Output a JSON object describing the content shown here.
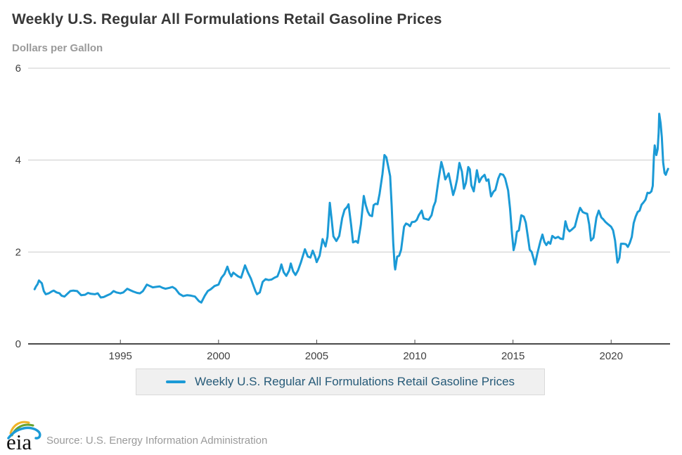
{
  "header": {
    "title": "Weekly U.S. Regular All Formulations Retail Gasoline Prices",
    "subtitle": "Dollars per Gallon"
  },
  "legend": {
    "label": "Weekly U.S. Regular All Formulations Retail Gasoline Prices"
  },
  "footer": {
    "logo_text": "eia",
    "source": "Source: U.S. Energy Information Administration"
  },
  "colors": {
    "line": "#1b9ad6",
    "grid": "#cccccc",
    "axis": "#4a4a4a",
    "tick_text": "#404040",
    "title_text": "#383838",
    "muted_text": "#9a9a9a",
    "legend_text": "#265a78",
    "legend_bg": "#f0f0f0"
  },
  "chart_data": {
    "type": "line",
    "title": "Weekly U.S. Regular All Formulations Retail Gasoline Prices",
    "xlabel": "",
    "ylabel": "Dollars per Gallon",
    "xlim": [
      1990.3,
      2023.0
    ],
    "ylim": [
      0,
      6
    ],
    "xticks": [
      1995,
      2000,
      2005,
      2010,
      2015,
      2020
    ],
    "yticks": [
      0,
      2,
      4,
      6
    ],
    "grid": "horizontal",
    "legend_position": "bottom-center",
    "series": [
      {
        "name": "Weekly U.S. Regular All Formulations Retail Gasoline Prices",
        "color": "#1b9ad6",
        "points": [
          [
            1990.63,
            1.19
          ],
          [
            1990.7,
            1.25
          ],
          [
            1990.78,
            1.3
          ],
          [
            1990.85,
            1.38
          ],
          [
            1991.0,
            1.32
          ],
          [
            1991.1,
            1.15
          ],
          [
            1991.2,
            1.08
          ],
          [
            1991.35,
            1.1
          ],
          [
            1991.5,
            1.14
          ],
          [
            1991.6,
            1.16
          ],
          [
            1991.75,
            1.12
          ],
          [
            1991.9,
            1.1
          ],
          [
            1992.0,
            1.05
          ],
          [
            1992.15,
            1.03
          ],
          [
            1992.3,
            1.09
          ],
          [
            1992.45,
            1.15
          ],
          [
            1992.6,
            1.16
          ],
          [
            1992.8,
            1.15
          ],
          [
            1993.0,
            1.06
          ],
          [
            1993.2,
            1.07
          ],
          [
            1993.35,
            1.11
          ],
          [
            1993.5,
            1.09
          ],
          [
            1993.7,
            1.08
          ],
          [
            1993.85,
            1.1
          ],
          [
            1994.0,
            1.01
          ],
          [
            1994.15,
            1.02
          ],
          [
            1994.3,
            1.05
          ],
          [
            1994.5,
            1.09
          ],
          [
            1994.65,
            1.15
          ],
          [
            1994.8,
            1.12
          ],
          [
            1995.0,
            1.1
          ],
          [
            1995.15,
            1.12
          ],
          [
            1995.35,
            1.2
          ],
          [
            1995.5,
            1.17
          ],
          [
            1995.65,
            1.14
          ],
          [
            1995.85,
            1.11
          ],
          [
            1996.0,
            1.1
          ],
          [
            1996.15,
            1.15
          ],
          [
            1996.35,
            1.29
          ],
          [
            1996.5,
            1.26
          ],
          [
            1996.65,
            1.23
          ],
          [
            1996.8,
            1.24
          ],
          [
            1997.0,
            1.25
          ],
          [
            1997.15,
            1.22
          ],
          [
            1997.3,
            1.2
          ],
          [
            1997.5,
            1.22
          ],
          [
            1997.65,
            1.24
          ],
          [
            1997.8,
            1.2
          ],
          [
            1998.0,
            1.09
          ],
          [
            1998.2,
            1.04
          ],
          [
            1998.4,
            1.06
          ],
          [
            1998.6,
            1.05
          ],
          [
            1998.8,
            1.03
          ],
          [
            1999.0,
            0.93
          ],
          [
            1999.12,
            0.9
          ],
          [
            1999.3,
            1.05
          ],
          [
            1999.45,
            1.15
          ],
          [
            1999.6,
            1.19
          ],
          [
            1999.8,
            1.26
          ],
          [
            2000.0,
            1.29
          ],
          [
            2000.15,
            1.44
          ],
          [
            2000.3,
            1.52
          ],
          [
            2000.45,
            1.68
          ],
          [
            2000.55,
            1.55
          ],
          [
            2000.65,
            1.47
          ],
          [
            2000.75,
            1.55
          ],
          [
            2000.9,
            1.5
          ],
          [
            2001.0,
            1.47
          ],
          [
            2001.15,
            1.44
          ],
          [
            2001.35,
            1.71
          ],
          [
            2001.5,
            1.55
          ],
          [
            2001.65,
            1.42
          ],
          [
            2001.75,
            1.3
          ],
          [
            2001.88,
            1.15
          ],
          [
            2001.96,
            1.08
          ],
          [
            2002.1,
            1.12
          ],
          [
            2002.25,
            1.35
          ],
          [
            2002.4,
            1.41
          ],
          [
            2002.55,
            1.39
          ],
          [
            2002.7,
            1.4
          ],
          [
            2002.85,
            1.44
          ],
          [
            2003.0,
            1.47
          ],
          [
            2003.12,
            1.6
          ],
          [
            2003.2,
            1.73
          ],
          [
            2003.32,
            1.56
          ],
          [
            2003.45,
            1.48
          ],
          [
            2003.6,
            1.6
          ],
          [
            2003.68,
            1.75
          ],
          [
            2003.8,
            1.58
          ],
          [
            2003.92,
            1.5
          ],
          [
            2004.05,
            1.6
          ],
          [
            2004.2,
            1.78
          ],
          [
            2004.4,
            2.06
          ],
          [
            2004.55,
            1.9
          ],
          [
            2004.68,
            1.88
          ],
          [
            2004.8,
            2.03
          ],
          [
            2004.92,
            1.9
          ],
          [
            2005.0,
            1.78
          ],
          [
            2005.15,
            1.92
          ],
          [
            2005.3,
            2.28
          ],
          [
            2005.45,
            2.12
          ],
          [
            2005.55,
            2.33
          ],
          [
            2005.67,
            3.07
          ],
          [
            2005.75,
            2.75
          ],
          [
            2005.85,
            2.34
          ],
          [
            2006.0,
            2.24
          ],
          [
            2006.15,
            2.35
          ],
          [
            2006.3,
            2.74
          ],
          [
            2006.42,
            2.92
          ],
          [
            2006.55,
            2.98
          ],
          [
            2006.62,
            3.04
          ],
          [
            2006.75,
            2.6
          ],
          [
            2006.85,
            2.21
          ],
          [
            2007.0,
            2.24
          ],
          [
            2007.1,
            2.2
          ],
          [
            2007.25,
            2.6
          ],
          [
            2007.4,
            3.22
          ],
          [
            2007.5,
            3.02
          ],
          [
            2007.6,
            2.88
          ],
          [
            2007.7,
            2.8
          ],
          [
            2007.82,
            2.78
          ],
          [
            2007.9,
            3.02
          ],
          [
            2008.0,
            3.05
          ],
          [
            2008.1,
            3.04
          ],
          [
            2008.2,
            3.26
          ],
          [
            2008.35,
            3.7
          ],
          [
            2008.45,
            4.11
          ],
          [
            2008.55,
            4.06
          ],
          [
            2008.65,
            3.85
          ],
          [
            2008.74,
            3.65
          ],
          [
            2008.82,
            3.0
          ],
          [
            2008.9,
            2.2
          ],
          [
            2008.97,
            1.7
          ],
          [
            2009.0,
            1.62
          ],
          [
            2009.1,
            1.9
          ],
          [
            2009.2,
            1.92
          ],
          [
            2009.3,
            2.05
          ],
          [
            2009.45,
            2.55
          ],
          [
            2009.55,
            2.62
          ],
          [
            2009.65,
            2.6
          ],
          [
            2009.75,
            2.56
          ],
          [
            2009.85,
            2.65
          ],
          [
            2010.0,
            2.66
          ],
          [
            2010.1,
            2.7
          ],
          [
            2010.2,
            2.8
          ],
          [
            2010.35,
            2.9
          ],
          [
            2010.45,
            2.73
          ],
          [
            2010.55,
            2.72
          ],
          [
            2010.7,
            2.7
          ],
          [
            2010.85,
            2.8
          ],
          [
            2010.95,
            2.99
          ],
          [
            2011.05,
            3.1
          ],
          [
            2011.2,
            3.55
          ],
          [
            2011.35,
            3.96
          ],
          [
            2011.45,
            3.8
          ],
          [
            2011.55,
            3.58
          ],
          [
            2011.65,
            3.65
          ],
          [
            2011.72,
            3.71
          ],
          [
            2011.85,
            3.45
          ],
          [
            2011.95,
            3.24
          ],
          [
            2012.05,
            3.38
          ],
          [
            2012.15,
            3.58
          ],
          [
            2012.27,
            3.94
          ],
          [
            2012.4,
            3.75
          ],
          [
            2012.5,
            3.38
          ],
          [
            2012.6,
            3.5
          ],
          [
            2012.72,
            3.85
          ],
          [
            2012.8,
            3.8
          ],
          [
            2012.88,
            3.45
          ],
          [
            2013.0,
            3.32
          ],
          [
            2013.1,
            3.6
          ],
          [
            2013.16,
            3.78
          ],
          [
            2013.28,
            3.52
          ],
          [
            2013.4,
            3.62
          ],
          [
            2013.55,
            3.68
          ],
          [
            2013.65,
            3.55
          ],
          [
            2013.75,
            3.58
          ],
          [
            2013.88,
            3.21
          ],
          [
            2014.0,
            3.31
          ],
          [
            2014.1,
            3.35
          ],
          [
            2014.25,
            3.6
          ],
          [
            2014.35,
            3.7
          ],
          [
            2014.5,
            3.68
          ],
          [
            2014.6,
            3.6
          ],
          [
            2014.75,
            3.34
          ],
          [
            2014.85,
            2.95
          ],
          [
            2014.95,
            2.4
          ],
          [
            2015.03,
            2.04
          ],
          [
            2015.12,
            2.2
          ],
          [
            2015.2,
            2.44
          ],
          [
            2015.3,
            2.47
          ],
          [
            2015.42,
            2.8
          ],
          [
            2015.55,
            2.77
          ],
          [
            2015.65,
            2.64
          ],
          [
            2015.75,
            2.35
          ],
          [
            2015.85,
            2.05
          ],
          [
            2015.95,
            2.0
          ],
          [
            2016.05,
            1.85
          ],
          [
            2016.12,
            1.73
          ],
          [
            2016.25,
            1.98
          ],
          [
            2016.4,
            2.24
          ],
          [
            2016.5,
            2.38
          ],
          [
            2016.6,
            2.22
          ],
          [
            2016.7,
            2.15
          ],
          [
            2016.8,
            2.22
          ],
          [
            2016.9,
            2.18
          ],
          [
            2017.0,
            2.35
          ],
          [
            2017.15,
            2.3
          ],
          [
            2017.3,
            2.33
          ],
          [
            2017.42,
            2.29
          ],
          [
            2017.55,
            2.28
          ],
          [
            2017.67,
            2.67
          ],
          [
            2017.78,
            2.5
          ],
          [
            2017.88,
            2.45
          ],
          [
            2018.0,
            2.49
          ],
          [
            2018.15,
            2.55
          ],
          [
            2018.3,
            2.8
          ],
          [
            2018.42,
            2.96
          ],
          [
            2018.55,
            2.87
          ],
          [
            2018.65,
            2.85
          ],
          [
            2018.78,
            2.83
          ],
          [
            2018.88,
            2.6
          ],
          [
            2018.97,
            2.25
          ],
          [
            2019.1,
            2.31
          ],
          [
            2019.25,
            2.75
          ],
          [
            2019.37,
            2.9
          ],
          [
            2019.5,
            2.75
          ],
          [
            2019.6,
            2.71
          ],
          [
            2019.72,
            2.65
          ],
          [
            2019.85,
            2.6
          ],
          [
            2020.0,
            2.55
          ],
          [
            2020.1,
            2.47
          ],
          [
            2020.2,
            2.25
          ],
          [
            2020.32,
            1.77
          ],
          [
            2020.42,
            1.87
          ],
          [
            2020.5,
            2.18
          ],
          [
            2020.62,
            2.18
          ],
          [
            2020.75,
            2.17
          ],
          [
            2020.85,
            2.11
          ],
          [
            2020.95,
            2.2
          ],
          [
            2021.05,
            2.33
          ],
          [
            2021.15,
            2.63
          ],
          [
            2021.25,
            2.77
          ],
          [
            2021.35,
            2.87
          ],
          [
            2021.45,
            2.9
          ],
          [
            2021.55,
            3.03
          ],
          [
            2021.65,
            3.08
          ],
          [
            2021.75,
            3.14
          ],
          [
            2021.85,
            3.29
          ],
          [
            2021.95,
            3.28
          ],
          [
            2022.05,
            3.32
          ],
          [
            2022.12,
            3.44
          ],
          [
            2022.18,
            4.1
          ],
          [
            2022.22,
            4.32
          ],
          [
            2022.3,
            4.11
          ],
          [
            2022.37,
            4.24
          ],
          [
            2022.42,
            4.6
          ],
          [
            2022.45,
            5.01
          ],
          [
            2022.52,
            4.8
          ],
          [
            2022.58,
            4.5
          ],
          [
            2022.65,
            3.95
          ],
          [
            2022.72,
            3.72
          ],
          [
            2022.78,
            3.68
          ],
          [
            2022.85,
            3.76
          ],
          [
            2022.9,
            3.81
          ]
        ]
      }
    ]
  }
}
